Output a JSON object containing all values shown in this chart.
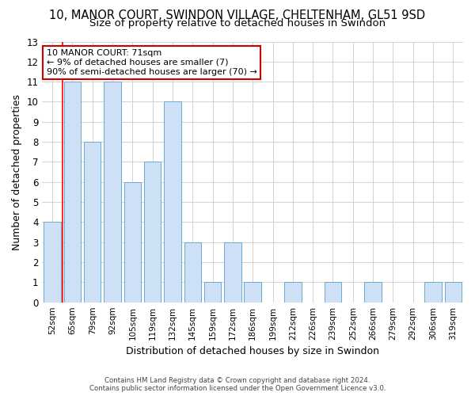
{
  "title1": "10, MANOR COURT, SWINDON VILLAGE, CHELTENHAM, GL51 9SD",
  "title2": "Size of property relative to detached houses in Swindon",
  "xlabel": "Distribution of detached houses by size in Swindon",
  "ylabel": "Number of detached properties",
  "categories": [
    "52sqm",
    "65sqm",
    "79sqm",
    "92sqm",
    "105sqm",
    "119sqm",
    "132sqm",
    "145sqm",
    "159sqm",
    "172sqm",
    "186sqm",
    "199sqm",
    "212sqm",
    "226sqm",
    "239sqm",
    "252sqm",
    "266sqm",
    "279sqm",
    "292sqm",
    "306sqm",
    "319sqm"
  ],
  "values": [
    4,
    11,
    8,
    11,
    6,
    7,
    10,
    3,
    1,
    3,
    1,
    0,
    1,
    0,
    1,
    0,
    1,
    0,
    0,
    1,
    1
  ],
  "bar_color": "#cde0f5",
  "bar_edge_color": "#6aaad4",
  "annotation_line1": "10 MANOR COURT: 71sqm",
  "annotation_line2": "← 9% of detached houses are smaller (7)",
  "annotation_line3": "90% of semi-detached houses are larger (70) →",
  "annotation_box_color": "white",
  "annotation_box_edge_color": "#cc0000",
  "ylim": [
    0,
    13
  ],
  "yticks": [
    0,
    1,
    2,
    3,
    4,
    5,
    6,
    7,
    8,
    9,
    10,
    11,
    12,
    13
  ],
  "footer1": "Contains HM Land Registry data © Crown copyright and database right 2024.",
  "footer2": "Contains public sector information licensed under the Open Government Licence v3.0.",
  "bg_color": "white",
  "grid_color": "#cccccc",
  "title1_fontsize": 10.5,
  "title2_fontsize": 9.5,
  "xlabel_fontsize": 9,
  "ylabel_fontsize": 9,
  "bar_width": 0.85
}
